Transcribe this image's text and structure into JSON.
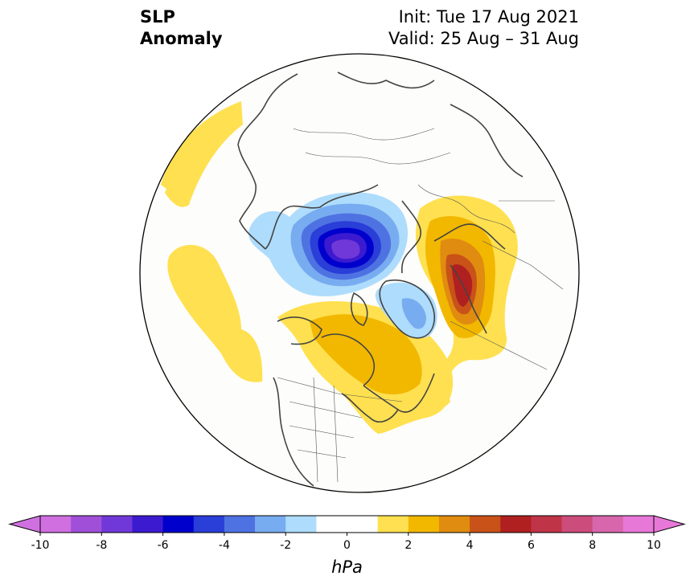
{
  "title": {
    "left_line1": "SLP",
    "left_line2": "Anomaly",
    "right_line1": "Init: Tue 17 Aug 2021",
    "right_line2": "Valid: 25 Aug – 31 Aug"
  },
  "colorbar": {
    "unit": "hPa",
    "ticks": [
      "-10",
      "-8",
      "-6",
      "-4",
      "-2",
      "0",
      "2",
      "4",
      "6",
      "8",
      "10"
    ],
    "levels": [
      -10,
      -9,
      -8,
      -7,
      -6,
      -5,
      -4,
      -3,
      -2,
      -1,
      1,
      2,
      3,
      4,
      5,
      6,
      7,
      8,
      9,
      10
    ],
    "colors": [
      "#d070e0",
      "#a050d8",
      "#7038d8",
      "#3c1ad0",
      "#0000cc",
      "#2a3ed8",
      "#4f72e2",
      "#78acf0",
      "#aedcfc",
      "#ffffff",
      "#ffffff",
      "#ffe050",
      "#f2b800",
      "#e08c10",
      "#c85218",
      "#b02020",
      "#c03448",
      "#cc4c7c",
      "#d866ac",
      "#e878d8"
    ],
    "under_color": "#d070e0",
    "over_color": "#e878d8",
    "extend": "both"
  },
  "map": {
    "projection": "north-polar-stereographic",
    "anomaly_regions": [
      {
        "name": "negative-center-siberian-arctic",
        "sign": "negative",
        "peak_hpa": -8
      },
      {
        "name": "negative-lobe-greenland",
        "sign": "negative",
        "peak_hpa": -3
      },
      {
        "name": "positive-center-northern-canada",
        "sign": "positive",
        "peak_hpa": 3
      },
      {
        "name": "positive-center-western-russia",
        "sign": "positive",
        "peak_hpa": 6
      },
      {
        "name": "positive-lobe-north-pacific",
        "sign": "positive",
        "peak_hpa": 1
      },
      {
        "name": "positive-lobe-near-europe-asia-west",
        "sign": "positive",
        "peak_hpa": 1
      }
    ]
  }
}
